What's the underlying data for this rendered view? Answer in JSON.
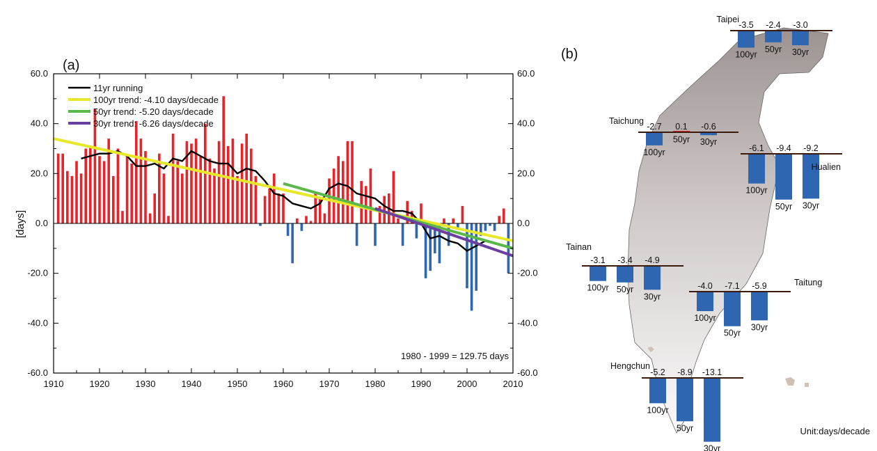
{
  "chart_data": [
    {
      "type": "bar",
      "panel": "(a)",
      "ylabel": "[days]",
      "xlabel": "",
      "xlim": [
        1910,
        2010
      ],
      "ylim": [
        -60,
        60
      ],
      "x_ticks": [
        "1910",
        "1920",
        "1930",
        "1940",
        "1950",
        "1960",
        "1970",
        "1980",
        "1990",
        "2000",
        "2010"
      ],
      "y_ticks": [
        "60.0",
        "40.0",
        "20.0",
        "0.0",
        "-20.0",
        "-40.0",
        "-60.0"
      ],
      "annotation": "1980 - 1999 = 129.75 days",
      "colors": {
        "positive": "#e8242b",
        "negative": "#2f66b2",
        "running": "#000000",
        "trend100": "#e8e82a",
        "trend50": "#5ab84a",
        "trend30": "#6b3fa0"
      },
      "legend_position": "top-left",
      "legend": [
        {
          "label": "11yr running",
          "color": "#000000"
        },
        {
          "label": "100yr trend: -4.10 days/decade",
          "color": "#e8e82a"
        },
        {
          "label": "50yr trend: -5.20 days/decade",
          "color": "#5ab84a"
        },
        {
          "label": "30yr trend: -6.26 days/decade",
          "color": "#6b3fa0"
        }
      ],
      "bars": {
        "x": [
          1911,
          1912,
          1913,
          1914,
          1915,
          1916,
          1917,
          1918,
          1919,
          1920,
          1921,
          1922,
          1923,
          1924,
          1925,
          1926,
          1927,
          1928,
          1929,
          1930,
          1931,
          1932,
          1933,
          1934,
          1935,
          1936,
          1937,
          1938,
          1939,
          1940,
          1941,
          1942,
          1943,
          1944,
          1945,
          1946,
          1947,
          1948,
          1949,
          1950,
          1951,
          1952,
          1953,
          1954,
          1955,
          1956,
          1957,
          1958,
          1959,
          1960,
          1961,
          1962,
          1963,
          1964,
          1965,
          1966,
          1967,
          1968,
          1969,
          1970,
          1971,
          1972,
          1973,
          1974,
          1975,
          1976,
          1977,
          1978,
          1979,
          1980,
          1981,
          1982,
          1983,
          1984,
          1985,
          1986,
          1987,
          1988,
          1989,
          1990,
          1991,
          1992,
          1993,
          1994,
          1995,
          1996,
          1997,
          1998,
          1999,
          2000,
          2001,
          2002,
          2003,
          2004,
          2005,
          2006,
          2007,
          2008,
          2009
        ],
        "y": [
          28,
          28,
          21,
          19,
          25,
          20,
          30,
          31,
          46,
          27,
          25,
          34,
          19,
          30,
          5,
          27,
          24,
          41,
          34,
          29,
          4,
          12,
          28,
          20,
          3,
          36,
          25,
          20,
          33,
          32,
          34,
          27,
          40,
          26,
          22,
          33,
          51,
          31,
          34,
          19,
          32,
          36,
          30,
          19,
          -1,
          11,
          14,
          20,
          12,
          12,
          -5,
          -16,
          2,
          -3,
          3,
          1,
          12,
          10,
          4,
          18,
          22,
          27,
          25,
          33,
          33,
          -9,
          17,
          15,
          22,
          -9,
          7,
          11,
          12,
          21,
          2,
          -9,
          9,
          5,
          -6,
          8,
          -22,
          -19,
          -12,
          -16,
          2,
          -9,
          2,
          -2,
          7,
          -26,
          -35,
          -27,
          -5,
          -3,
          -1,
          -3,
          3,
          6,
          -20
        ]
      },
      "series": [
        {
          "name": "11yr running",
          "x": [
            1916,
            1918,
            1920,
            1922,
            1924,
            1926,
            1928,
            1930,
            1932,
            1934,
            1936,
            1938,
            1940,
            1942,
            1944,
            1946,
            1948,
            1950,
            1952,
            1954,
            1956,
            1958,
            1960,
            1962,
            1964,
            1966,
            1968,
            1970,
            1972,
            1974,
            1976,
            1978,
            1980,
            1982,
            1984,
            1986,
            1988,
            1990,
            1992,
            1994,
            1996,
            1998,
            2000,
            2002,
            2004
          ],
          "y": [
            26,
            27,
            28,
            28,
            29,
            27,
            23,
            23,
            24,
            22,
            26,
            25,
            29,
            27,
            25,
            24,
            24,
            20,
            22,
            21,
            17,
            12,
            11,
            8,
            7,
            6,
            8,
            14,
            16,
            15,
            12,
            11,
            10,
            7,
            5,
            5,
            4,
            0,
            -6,
            -5,
            -7,
            -8,
            -11,
            -9,
            -7
          ]
        },
        {
          "name": "100yr trend: -4.10 days/decade",
          "x": [
            1910,
            2010
          ],
          "y": [
            34,
            -7
          ]
        },
        {
          "name": "50yr trend: -5.20 days/decade",
          "x": [
            1960,
            2010
          ],
          "y": [
            16,
            -10
          ]
        },
        {
          "name": "30yr trend: -6.26 days/decade",
          "x": [
            1980,
            2010
          ],
          "y": [
            6,
            -13
          ]
        }
      ]
    },
    {
      "type": "bar",
      "panel": "(b)",
      "unit_label": "Unit:days/decade",
      "bar_color": "#2f66b2",
      "positive_color": "#e8242b",
      "stations": [
        {
          "name": "Taipei",
          "values": [
            -3.5,
            -2.4,
            -3.0
          ],
          "value_labels": [
            "-3.5",
            "-2.4",
            "-3.0"
          ],
          "periods": [
            "100yr",
            "50yr",
            "30yr"
          ]
        },
        {
          "name": "Taichung",
          "values": [
            -2.7,
            0.1,
            -0.6
          ],
          "value_labels": [
            "-2.7",
            "0.1",
            "-0.6"
          ],
          "periods": [
            "100yr",
            "50yr",
            "30yr"
          ]
        },
        {
          "name": "Hualien",
          "values": [
            -6.1,
            -9.4,
            -9.2
          ],
          "value_labels": [
            "-6.1",
            "-9.4",
            "-9.2"
          ],
          "periods": [
            "100yr",
            "50yr",
            "30yr"
          ]
        },
        {
          "name": "Tainan",
          "values": [
            -3.1,
            -3.4,
            -4.9
          ],
          "value_labels": [
            "-3.1",
            "-3.4",
            "-4.9"
          ],
          "periods": [
            "100yr",
            "50yr",
            "30yr"
          ]
        },
        {
          "name": "Taitung",
          "values": [
            -4.0,
            -7.1,
            -5.9
          ],
          "value_labels": [
            "-4.0",
            "-7.1",
            "-5.9"
          ],
          "periods": [
            "100yr",
            "50yr",
            "30yr"
          ]
        },
        {
          "name": "Hengchun",
          "values": [
            -5.2,
            -8.9,
            -13.1
          ],
          "value_labels": [
            "-5.2",
            "-8.9",
            "-13.1"
          ],
          "periods": [
            "100yr",
            "50yr",
            "30yr"
          ]
        }
      ]
    }
  ]
}
